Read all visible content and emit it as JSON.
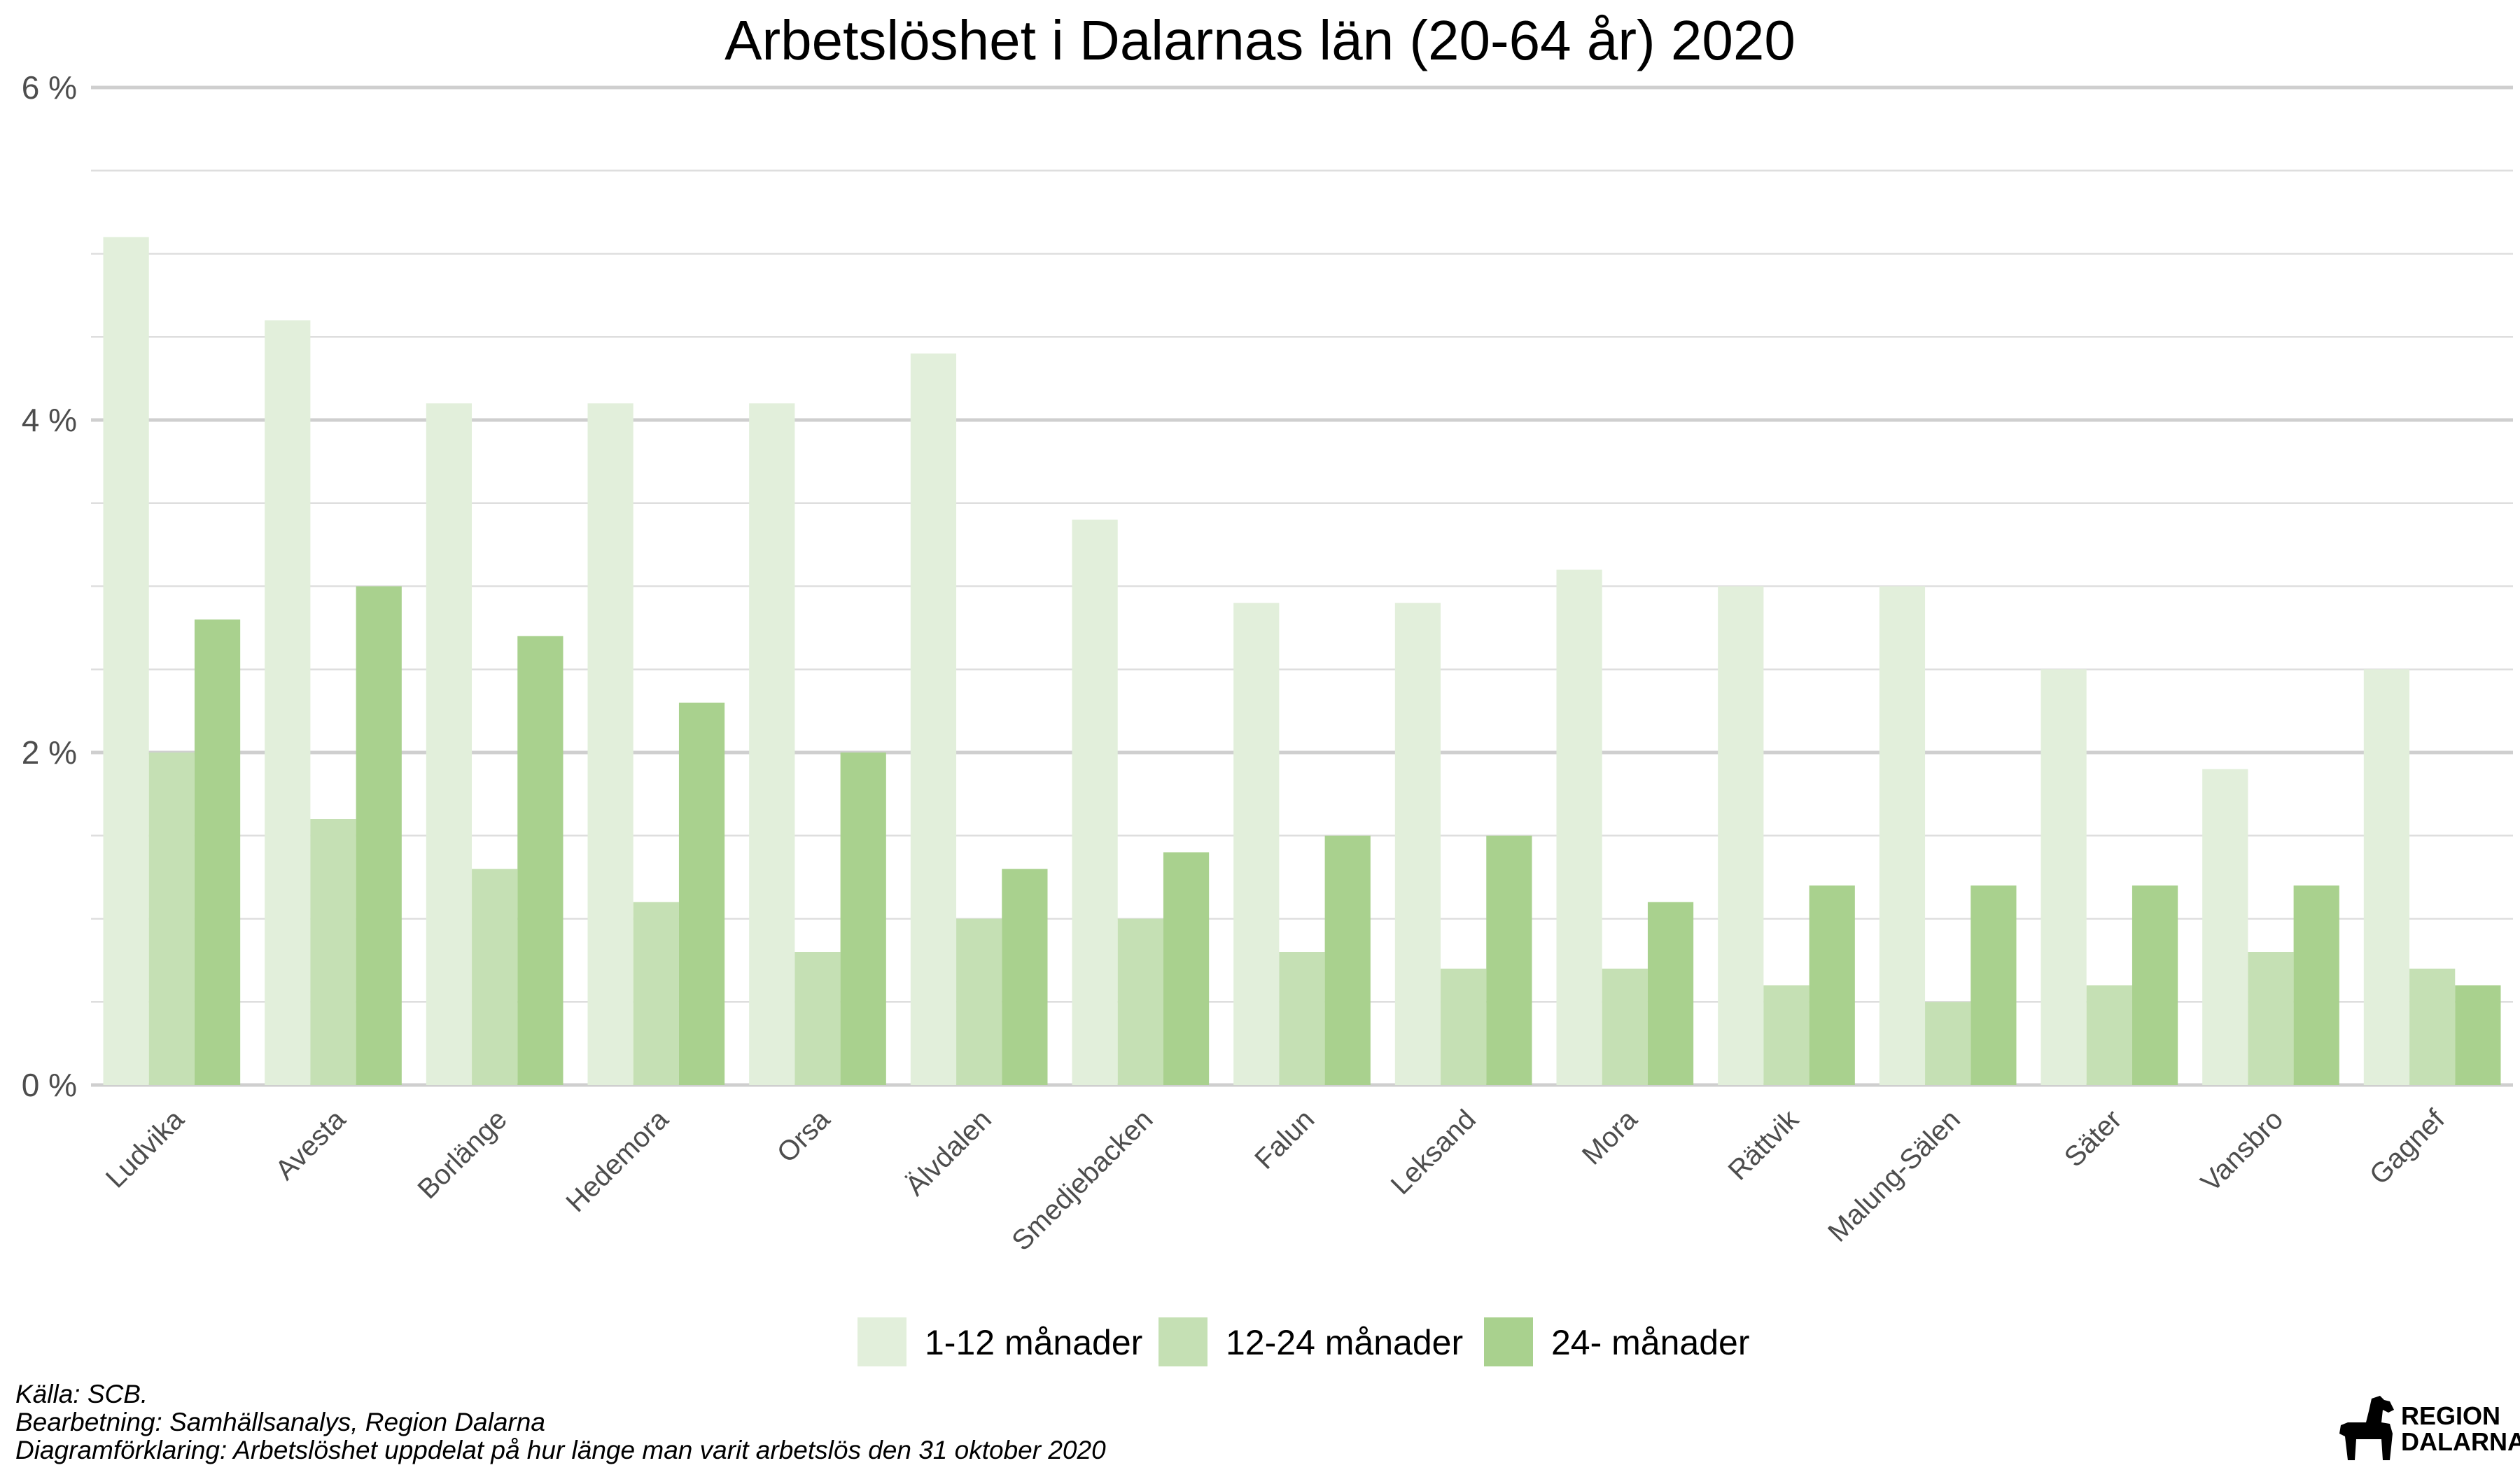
{
  "chart_data": {
    "type": "bar",
    "title": "Arbetslöshet i Dalarnas län (20-64 år) 2020",
    "xlabel": "",
    "ylabel": "",
    "ylim": [
      0,
      6
    ],
    "yticks": [
      0,
      2,
      4,
      6
    ],
    "ytick_labels": [
      "0 %",
      "2 %",
      "4 %",
      "6 %"
    ],
    "grid": true,
    "legend_position": "bottom",
    "categories": [
      "Ludvika",
      "Avesta",
      "Borlänge",
      "Hedemora",
      "Orsa",
      "Älvdalen",
      "Smedjebacken",
      "Falun",
      "Leksand",
      "Mora",
      "Rättvik",
      "Malung-Sälen",
      "Säter",
      "Vansbro",
      "Gagnef"
    ],
    "series": [
      {
        "name": "1-12 månader",
        "color": "#e2efdb",
        "values": [
          5.1,
          4.6,
          4.1,
          4.1,
          4.1,
          4.4,
          3.4,
          2.9,
          2.9,
          3.1,
          3.0,
          3.0,
          2.5,
          1.9,
          2.5
        ]
      },
      {
        "name": "12-24 månader",
        "color": "#c5e0b4",
        "values": [
          2.0,
          1.6,
          1.3,
          1.1,
          0.8,
          1.0,
          1.0,
          0.8,
          0.7,
          0.7,
          0.6,
          0.5,
          0.6,
          0.8,
          0.7
        ]
      },
      {
        "name": "24- månader",
        "color": "#a9d18e",
        "values": [
          2.8,
          3.0,
          2.7,
          2.3,
          2.0,
          1.3,
          1.4,
          1.5,
          1.5,
          1.1,
          1.2,
          1.2,
          1.2,
          1.2,
          0.6
        ]
      }
    ]
  },
  "caption": {
    "source": "Källa: SCB.",
    "processing": "Bearbetning: Samhällsanalys, Region Dalarna",
    "explanation": "Diagramförklaring: Arbetslöshet uppdelat på hur länge man varit arbetslös den 31 oktober 2020"
  },
  "logo": {
    "line1": "REGION",
    "line2": "DALARNA",
    "icon": "dala-horse-icon"
  }
}
